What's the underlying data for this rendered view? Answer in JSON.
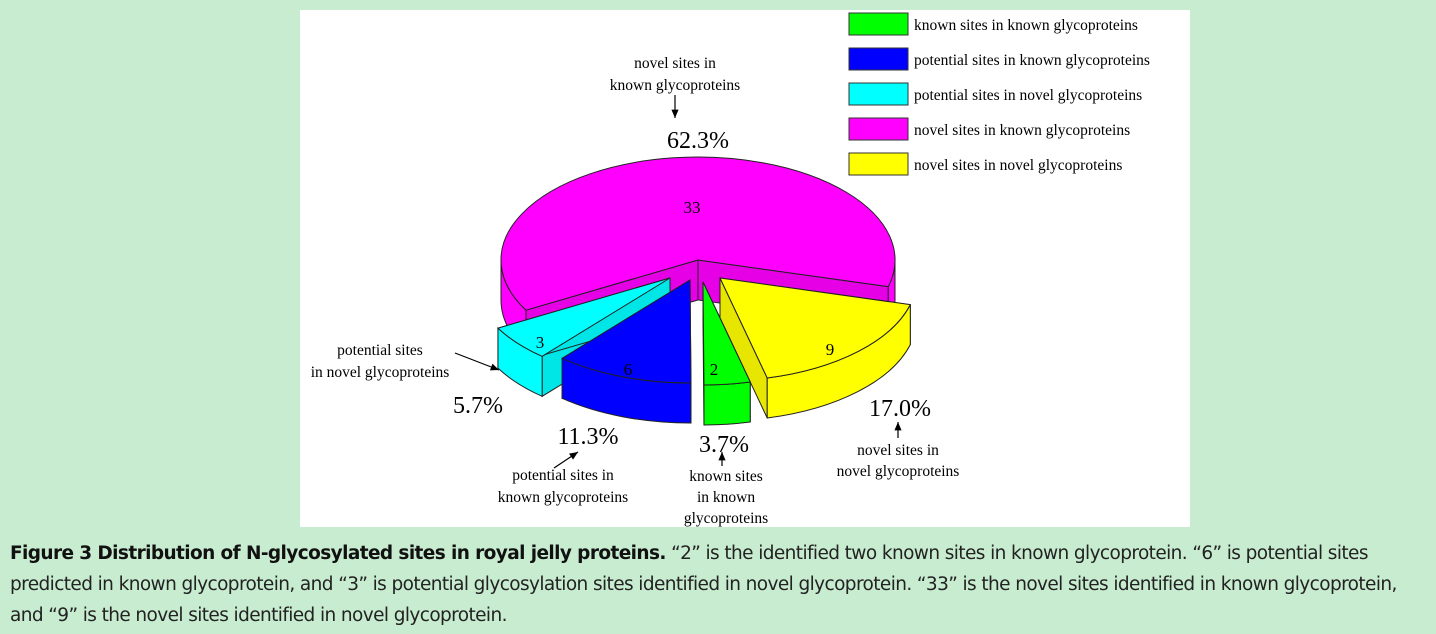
{
  "chart_data": {
    "type": "pie",
    "style": "3d-exploded",
    "categories": [
      "known sites in known glycoproteins",
      "potential sites in known glycoproteins",
      "potential sites in novel glycoproteins",
      "novel sites in known glycoproteins",
      "novel sites in novel glycoproteins"
    ],
    "values": [
      2,
      6,
      3,
      33,
      9
    ],
    "value_labels": [
      "2",
      "6",
      "3",
      "33",
      "9"
    ],
    "percent_labels": [
      "3.7%",
      "11.3%",
      "5.7%",
      "62.3%",
      "17.0%"
    ],
    "colors": [
      "#00ff00",
      "#0000ff",
      "#00ffff",
      "#ff00ff",
      "#ffff00"
    ],
    "annotations": [
      {
        "lines": [
          "known sites",
          "in known",
          "glycoproteins"
        ]
      },
      {
        "lines": [
          "potential sites in",
          "known glycoproteins"
        ]
      },
      {
        "lines": [
          "potential sites",
          "in novel glycoproteins"
        ]
      },
      {
        "lines": [
          "novel sites in",
          "known glycoproteins"
        ]
      },
      {
        "lines": [
          "novel sites in",
          "novel glycoproteins"
        ]
      }
    ],
    "legend": {
      "placement": "top-right",
      "entries": [
        "known sites in known glycoproteins",
        "potential sites in known glycoproteins",
        "potential sites in novel glycoproteins",
        "novel sites in known glycoproteins",
        "novel sites in novel glycoproteins"
      ]
    }
  },
  "caption": {
    "title": "Figure 3 Distribution of N-glycosylated sites in royal jelly proteins.",
    "text": " “2” is the identified two known sites in known glycoprotein. “6” is potential sites predicted in known glycoprotein, and “3” is potential glycosylation sites identified in novel glycoprotein. “33” is the novel sites identified in known glycoprotein, and “9” is the novel sites identified in novel glycoprotein."
  }
}
